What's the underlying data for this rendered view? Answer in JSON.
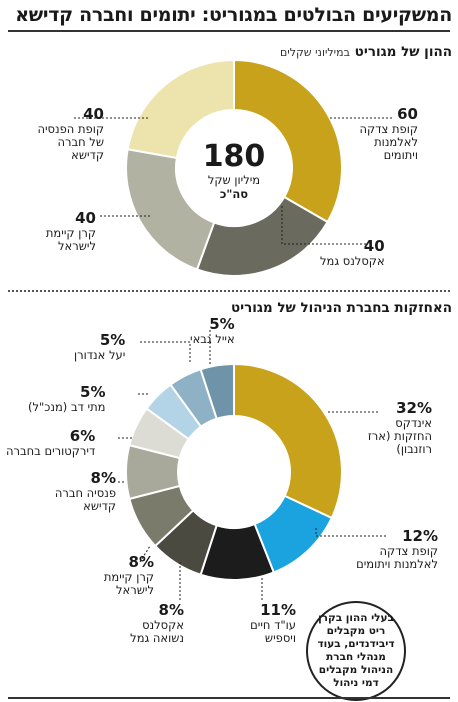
{
  "title": "המשקיעים הבולטים במגוריט: יתומים וחברה קדישא",
  "chart_data": [
    {
      "type": "pie",
      "title": "ההון של מגוריט",
      "subtitle": "במיליוני שקלים",
      "center_value": "180",
      "center_unit": "מיליון שקל",
      "center_note": "סה\"כ",
      "slices": [
        {
          "label": "קופת צדקה לאלמנות ויתומים",
          "value": 60,
          "value_text": "60",
          "color": "#c9a21b"
        },
        {
          "label": "אקסלנס גמל",
          "value": 40,
          "value_text": "40",
          "color": "#6b6a5e"
        },
        {
          "label": "קרן קיימת לישראל",
          "value": 40,
          "value_text": "40",
          "color": "#b2b2a3"
        },
        {
          "label": "קופת הפנסיה של חברה קדישא",
          "value": 40,
          "value_text": "40",
          "color": "#ede4ad"
        }
      ]
    },
    {
      "type": "pie",
      "title": "האחזקות בחברת הניהול של מגוריט",
      "slices": [
        {
          "label": "אינדקס החזקות (ארז רוזנבון)",
          "value": 32,
          "value_text": "32%",
          "color": "#c9a21b"
        },
        {
          "label": "קופת צדקה לאלמנות ויתומים",
          "value": 12,
          "value_text": "12%",
          "color": "#1aa3df"
        },
        {
          "label": "עו\"ד חיים ויספיש",
          "value": 11,
          "value_text": "11%",
          "color": "#1c1c1c"
        },
        {
          "label": "אקסלנס נשואה גמל",
          "value": 8,
          "value_text": "8%",
          "color": "#4a4a40"
        },
        {
          "label": "קרן קיימת לישראל",
          "value": 8,
          "value_text": "8%",
          "color": "#7b7b6c"
        },
        {
          "label": "פנסיה חברה קדישא",
          "value": 8,
          "value_text": "8%",
          "color": "#a9a99b"
        },
        {
          "label": "דירקטורים בחברה",
          "value": 6,
          "value_text": "6%",
          "color": "#dcdcd4"
        },
        {
          "label": "מתי דב (מנכ\"ל)",
          "value": 5,
          "value_text": "5%",
          "color": "#b3d4e7"
        },
        {
          "label": "יעל אנדורן",
          "value": 5,
          "value_text": "5%",
          "color": "#8fb1c5"
        },
        {
          "label": "אייל גבאי",
          "value": 5,
          "value_text": "5%",
          "color": "#6f93a8"
        }
      ]
    }
  ],
  "callout": "בעלי ההון בקרן ריט מקבלים דיבידנדים, בעוד מנהלי חברת הניהול מקבלים דמי ניהול"
}
